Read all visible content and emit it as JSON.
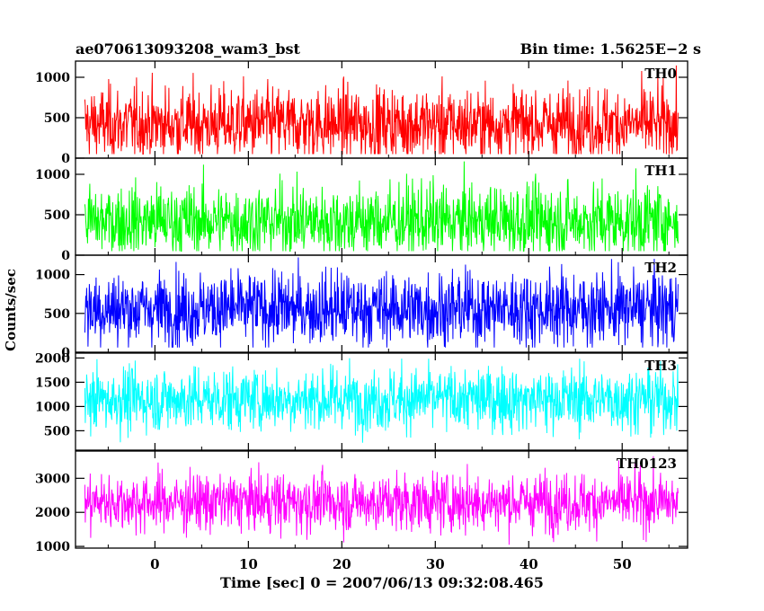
{
  "chart_data": {
    "type": "line",
    "title": "ae070613093208_wam3_bst",
    "subtitle": "Bin time: 1.5625E−2 s",
    "xlabel": "Time [sec] 0 = 2007/06/13 09:32:08.465",
    "ylabel": "Counts/sec",
    "xlim": [
      -8.5,
      57
    ],
    "x_ticks": [
      0,
      10,
      20,
      30,
      40,
      50
    ],
    "x_tick_labels": [
      "0",
      "10",
      "20",
      "30",
      "40",
      "50"
    ],
    "x_data_range": [
      -7.5,
      56
    ],
    "panels": [
      {
        "name": "TH0",
        "color": "#ff0000",
        "ylim": [
          0,
          1200
        ],
        "ticks": [
          0,
          500,
          1000
        ],
        "tick_labels": [
          "0",
          "500",
          "1000"
        ],
        "mean": 420,
        "noise": 230,
        "min": 50,
        "max": 1200
      },
      {
        "name": "TH1",
        "color": "#00ff00",
        "ylim": [
          0,
          1200
        ],
        "ticks": [
          0,
          500,
          1000
        ],
        "tick_labels": [
          "0",
          "500",
          "1000"
        ],
        "mean": 420,
        "noise": 230,
        "min": 50,
        "max": 1200
      },
      {
        "name": "TH2",
        "color": "#0000ff",
        "ylim": [
          0,
          1250
        ],
        "ticks": [
          0,
          500,
          1000
        ],
        "tick_labels": [
          "0",
          "500",
          "1000"
        ],
        "mean": 560,
        "noise": 240,
        "min": 60,
        "max": 1250
      },
      {
        "name": "TH3",
        "color": "#00ffff",
        "ylim": [
          100,
          2100
        ],
        "ticks": [
          500,
          1000,
          1500,
          2000
        ],
        "tick_labels": [
          "500",
          "1000",
          "1500",
          "2000"
        ],
        "mean": 1150,
        "noise": 330,
        "min": 250,
        "max": 2100
      },
      {
        "name": "TH0123",
        "color": "#ff00ff",
        "ylim": [
          950,
          3800
        ],
        "ticks": [
          1000,
          2000,
          3000
        ],
        "tick_labels": [
          "1000",
          "2000",
          "3000"
        ],
        "mean": 2300,
        "noise": 430,
        "min": 1050,
        "max": 3650
      }
    ]
  }
}
